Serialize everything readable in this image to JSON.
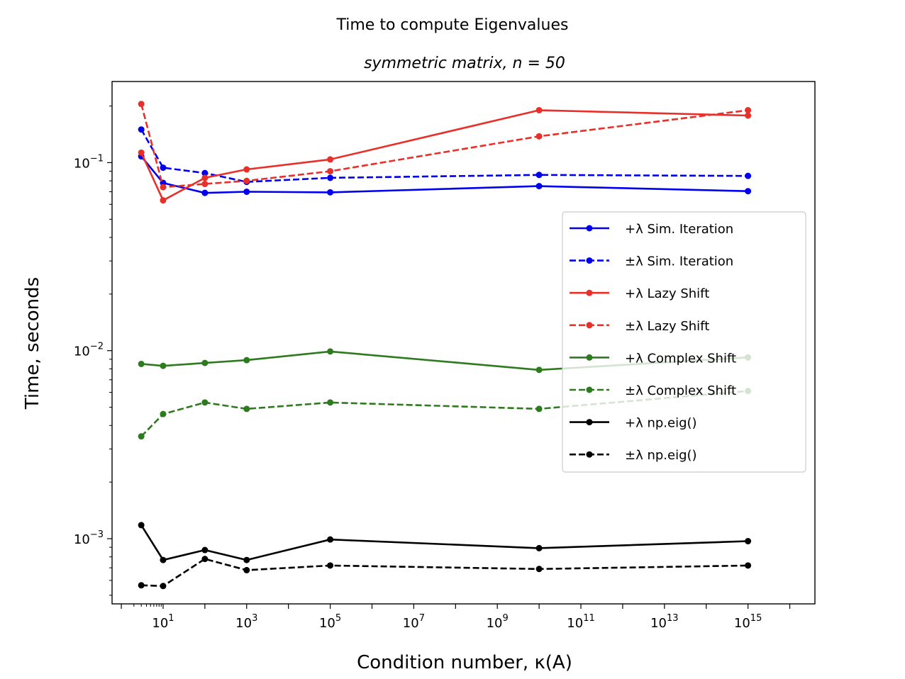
{
  "chart_data": {
    "type": "line",
    "title": "Time to compute Eigenvalues",
    "subtitle": "symmetric matrix, n = 50",
    "xlabel": "Condition number, κ(A)",
    "ylabel": "Time, seconds",
    "xscale": "log",
    "yscale": "log",
    "xlim": [
      0.6,
      40000000000000000
    ],
    "ylim": [
      0.00045,
      0.27
    ],
    "grid": false,
    "legend_position": "center-right",
    "x_ticks": [
      {
        "base": "10",
        "exp": "1"
      },
      {
        "base": "10",
        "exp": "3"
      },
      {
        "base": "10",
        "exp": "5"
      },
      {
        "base": "10",
        "exp": "7"
      },
      {
        "base": "10",
        "exp": "9"
      },
      {
        "base": "10",
        "exp": "11"
      },
      {
        "base": "10",
        "exp": "13"
      },
      {
        "base": "10",
        "exp": "15"
      }
    ],
    "y_ticks": [
      {
        "base": "10",
        "exp": "−1"
      },
      {
        "base": "10",
        "exp": "−2"
      },
      {
        "base": "10",
        "exp": "−3"
      }
    ],
    "x": [
      3,
      10,
      100,
      1000,
      100000,
      10000000000,
      1000000000000000
    ],
    "series": [
      {
        "name": "+λ Sim. Iteration",
        "color": "#0000ee",
        "dashed": false,
        "values": [
          0.108,
          0.078,
          0.069,
          0.07,
          0.0695,
          0.075,
          0.0705
        ]
      },
      {
        "name": "±λ Sim. Iteration",
        "color": "#0000ee",
        "dashed": true,
        "values": [
          0.15,
          0.094,
          0.088,
          0.079,
          0.083,
          0.086,
          0.085
        ]
      },
      {
        "name": "+λ Lazy Shift",
        "color": "#e8302a",
        "dashed": false,
        "values": [
          0.113,
          0.063,
          0.083,
          0.092,
          0.104,
          0.19,
          0.178
        ]
      },
      {
        "name": "±λ Lazy Shift",
        "color": "#e8302a",
        "dashed": true,
        "values": [
          0.205,
          0.074,
          0.077,
          0.08,
          0.09,
          0.138,
          0.19
        ]
      },
      {
        "name": "+λ Complex Shift",
        "color": "#2e7a1e",
        "dashed": false,
        "values": [
          0.0085,
          0.0083,
          0.0086,
          0.0089,
          0.0099,
          0.0079,
          0.0092
        ]
      },
      {
        "name": "±λ Complex Shift",
        "color": "#2e7a1e",
        "dashed": true,
        "values": [
          0.0035,
          0.0046,
          0.0053,
          0.0049,
          0.0053,
          0.0049,
          0.0061
        ]
      },
      {
        "name": "+λ np.eig()",
        "color": "#000000",
        "dashed": false,
        "values": [
          0.00118,
          0.00077,
          0.00087,
          0.00077,
          0.00099,
          0.00089,
          0.00097
        ]
      },
      {
        "name": "±λ np.eig()",
        "color": "#000000",
        "dashed": true,
        "values": [
          0.000565,
          0.00056,
          0.00078,
          0.00068,
          0.00072,
          0.00069,
          0.00072
        ]
      }
    ]
  }
}
